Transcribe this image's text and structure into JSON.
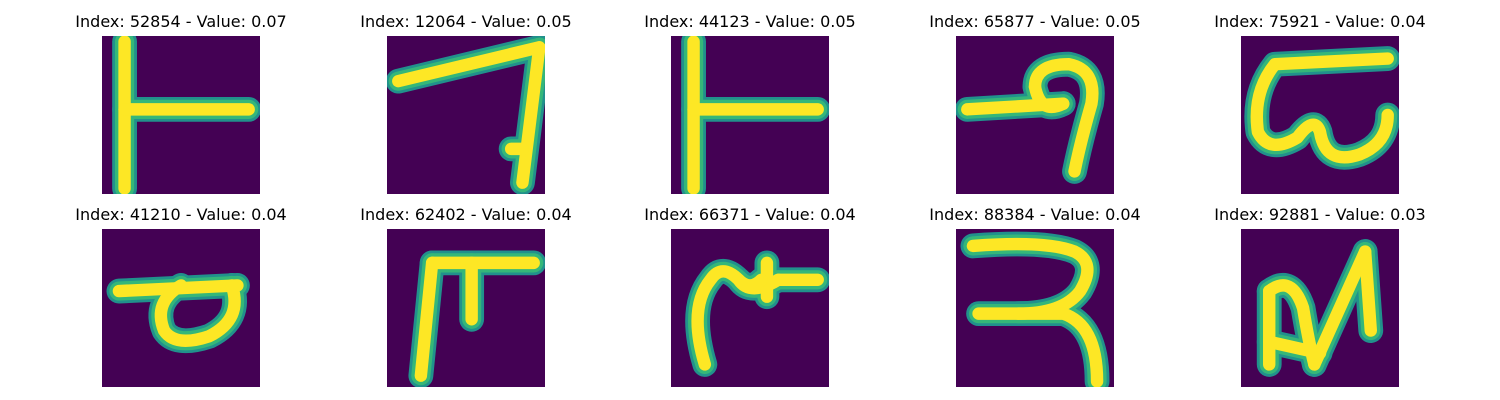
{
  "colors": {
    "background": "#440154",
    "stroke_core": "#fde725",
    "stroke_edge": "#35b779",
    "stroke_halo": "#21918c"
  },
  "tiles": [
    {
      "title": "Index: 52854 - Value: 0.07",
      "glyph": "t-shape-left-bar"
    },
    {
      "title": "Index: 12064 - Value: 0.05",
      "glyph": "seven-shape"
    },
    {
      "title": "Index: 44123 - Value: 0.05",
      "glyph": "t-shape-left-bar"
    },
    {
      "title": "Index: 65877 - Value: 0.05",
      "glyph": "loop-hook"
    },
    {
      "title": "Index: 75921 - Value: 0.04",
      "glyph": "curly-w"
    },
    {
      "title": "Index: 41210 - Value: 0.04",
      "glyph": "loop-p"
    },
    {
      "title": "Index: 62402 - Value: 0.04",
      "glyph": "double-stem"
    },
    {
      "title": "Index: 66371 - Value: 0.04",
      "glyph": "hook-star"
    },
    {
      "title": "Index: 88384 - Value: 0.04",
      "glyph": "double-curve"
    },
    {
      "title": "Index: 92881 - Value: 0.03",
      "glyph": "n-shape"
    }
  ]
}
